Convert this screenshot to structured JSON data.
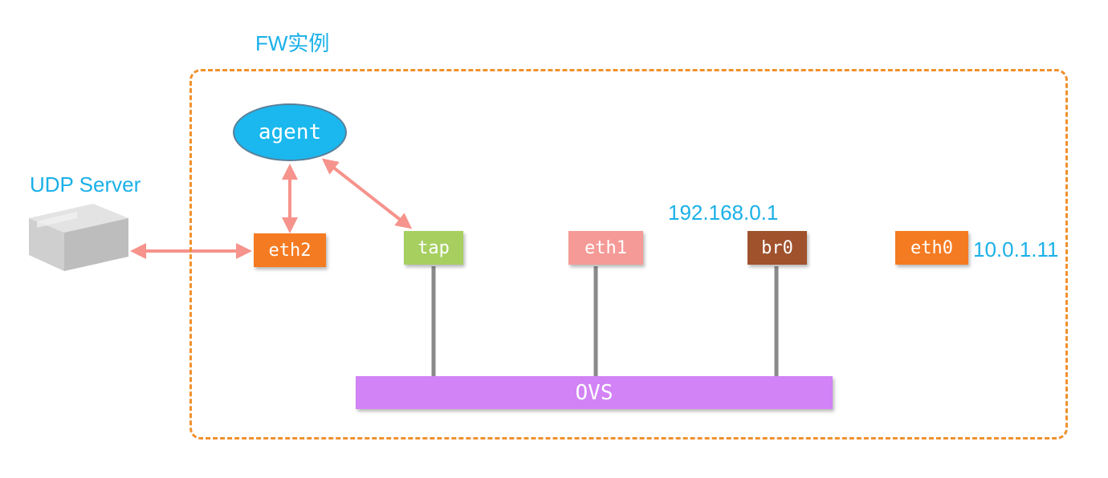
{
  "title": "FW实例",
  "udp_server": {
    "label": "UDP Server",
    "icon": "server-box-icon"
  },
  "agent": {
    "label": "agent"
  },
  "interfaces": {
    "eth2": {
      "label": "eth2",
      "color": "#f57b22"
    },
    "tap": {
      "label": "tap",
      "color": "#a6cf60"
    },
    "eth1": {
      "label": "eth1",
      "color": "#f59a96"
    },
    "br0": {
      "label": "br0",
      "color": "#a0522d"
    },
    "eth0": {
      "label": "eth0",
      "color": "#f57b22"
    }
  },
  "ovs": {
    "label": "OVS",
    "color": "#d283f5"
  },
  "ip_labels": {
    "br0_ip": "192.168.0.1",
    "eth0_ip": "10.0.1.11"
  },
  "colors": {
    "frame": "#f0912e",
    "text_accent": "#1ab0e8",
    "arrow": "#f6938c",
    "connector": "#8a8a8a"
  }
}
